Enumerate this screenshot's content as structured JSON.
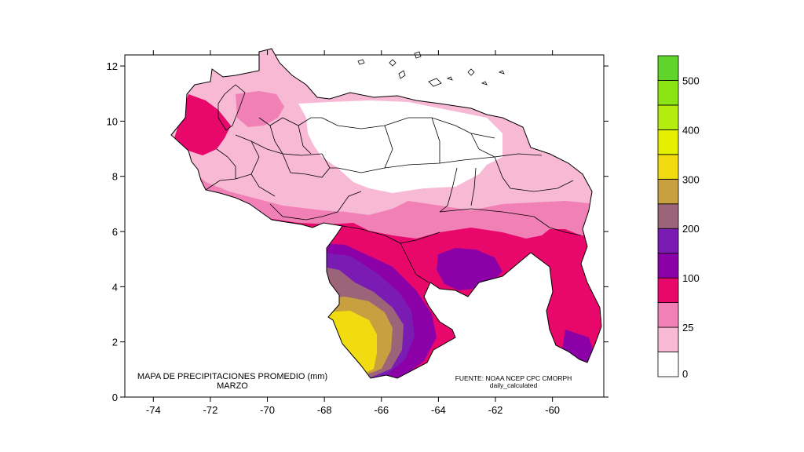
{
  "map": {
    "title_line1": "MAPA DE PRECIPITACIONES PROMEDIO (mm)",
    "title_line2": "MARZO",
    "source_line1": "FUENTE: NOAA NCEP CPC CMORPH",
    "source_line2": "daily_calculated",
    "x_ticks": [
      "-74",
      "-72",
      "-70",
      "-68",
      "-66",
      "-64",
      "-62",
      "-60"
    ],
    "y_ticks": [
      "0",
      "2",
      "4",
      "6",
      "8",
      "10",
      "12"
    ],
    "x_range": [
      -75,
      -58.2
    ],
    "y_range": [
      0,
      12.4
    ]
  },
  "legend": {
    "labels": [
      "0",
      "25",
      "100",
      "200",
      "300",
      "400",
      "500"
    ],
    "colors": [
      "#ffffff",
      "#f7b9d4",
      "#f080b6",
      "#e8086c",
      "#8c00a8",
      "#7a1cb4",
      "#9c6478",
      "#c8a040",
      "#f0dc10",
      "#e4f000",
      "#b4ec10",
      "#8ce414",
      "#60d42a"
    ]
  }
}
